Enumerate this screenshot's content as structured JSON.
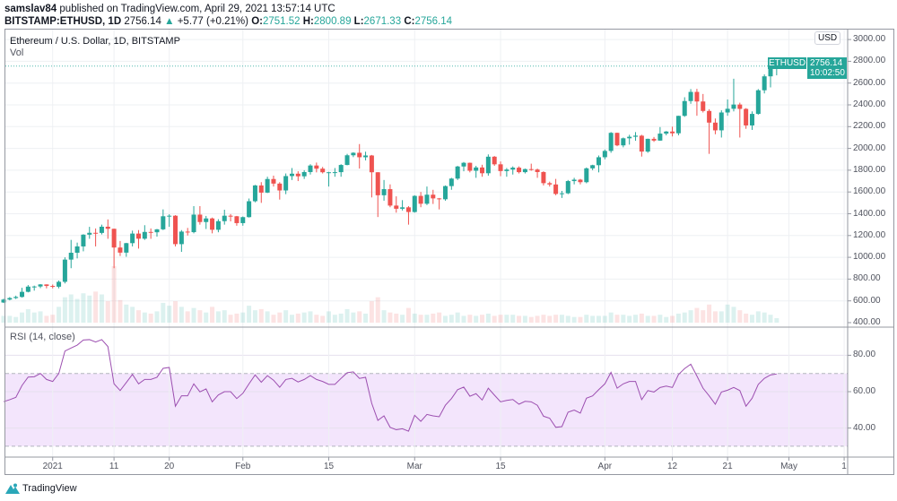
{
  "header": {
    "author": "samslav84",
    "published": "published on TradingView.com, April 29, 2021 13:57:14 UTC",
    "symbol": "BITSTAMP:ETHUSD, 1D",
    "last": "2756.14",
    "change_arrow": "▲",
    "change": "+5.77 (+0.21%)",
    "o_label": "O:",
    "o": "2751.52",
    "h_label": "H:",
    "h": "2800.89",
    "l_label": "L:",
    "l": "2671.33",
    "c_label": "C:",
    "c": "2756.14"
  },
  "pane": {
    "title": "Ethereum / U.S. Dollar, 1D, BITSTAMP",
    "volume_label": "Vol",
    "rsi_label": "RSI (14, close)",
    "currency_button": "USD",
    "symbol_tag": "ETHUSD",
    "last_price": "2756.14",
    "countdown": "10:02:50"
  },
  "footer": {
    "brand": "TradingView"
  },
  "colors": {
    "up": "#26a69a",
    "down": "#ef5350",
    "rsi_line": "#9c4fb0",
    "rsi_band": "#f3e5fc",
    "grid": "#eef0f3"
  },
  "chart_data": [
    {
      "type": "candlestick",
      "title": "Ethereum / U.S. Dollar, 1D, BITSTAMP",
      "ylim": [
        400,
        3000
      ],
      "y_ticks": [
        "400.00",
        "600.00",
        "800.00",
        "1000.00",
        "1200.00",
        "1400.00",
        "1600.00",
        "1800.00",
        "2000.00",
        "2200.00",
        "2400.00",
        "2600.00",
        "2800.00",
        "3000.00"
      ],
      "x_ticks": [
        {
          "label": "2021",
          "date": "2021-01-01"
        },
        {
          "label": "11",
          "date": "2021-01-11"
        },
        {
          "label": "20",
          "date": "2021-01-20"
        },
        {
          "label": "Feb",
          "date": "2021-02-01"
        },
        {
          "label": "15",
          "date": "2021-02-15"
        },
        {
          "label": "Mar",
          "date": "2021-03-01"
        },
        {
          "label": "15",
          "date": "2021-03-15"
        },
        {
          "label": "Apr",
          "date": "2021-04-01"
        },
        {
          "label": "12",
          "date": "2021-04-12"
        },
        {
          "label": "21",
          "date": "2021-04-21"
        },
        {
          "label": "May",
          "date": "2021-05-01"
        },
        {
          "label": "1",
          "date": "2021-05-10"
        }
      ],
      "grid": true,
      "columns": [
        "date",
        "open",
        "high",
        "low",
        "close",
        "volume_relative"
      ],
      "candles": [
        [
          "2020-12-24",
          585,
          620,
          580,
          612,
          12
        ],
        [
          "2020-12-25",
          612,
          635,
          605,
          626,
          12
        ],
        [
          "2020-12-26",
          626,
          648,
          617,
          636,
          10
        ],
        [
          "2020-12-27",
          636,
          720,
          630,
          683,
          18
        ],
        [
          "2020-12-28",
          683,
          745,
          678,
          731,
          24
        ],
        [
          "2020-12-29",
          731,
          740,
          694,
          732,
          18
        ],
        [
          "2020-12-30",
          732,
          754,
          717,
          751,
          20
        ],
        [
          "2020-12-31",
          751,
          752,
          715,
          737,
          12
        ],
        [
          "2021-01-01",
          737,
          750,
          715,
          730,
          14
        ],
        [
          "2021-01-02",
          730,
          787,
          715,
          775,
          28
        ],
        [
          "2021-01-03",
          775,
          1000,
          760,
          979,
          45
        ],
        [
          "2021-01-04",
          979,
          1160,
          900,
          1042,
          50
        ],
        [
          "2021-01-05",
          1042,
          1135,
          990,
          1100,
          42
        ],
        [
          "2021-01-06",
          1100,
          1212,
          1055,
          1208,
          52
        ],
        [
          "2021-01-07",
          1208,
          1280,
          1170,
          1225,
          48
        ],
        [
          "2021-01-08",
          1225,
          1265,
          1100,
          1224,
          55
        ],
        [
          "2021-01-09",
          1224,
          1300,
          1210,
          1281,
          50
        ],
        [
          "2021-01-10",
          1281,
          1348,
          1170,
          1262,
          38
        ],
        [
          "2021-01-11",
          1262,
          1262,
          900,
          1090,
          100
        ],
        [
          "2021-01-12",
          1090,
          1150,
          1012,
          1043,
          40
        ],
        [
          "2021-01-13",
          1043,
          1133,
          1005,
          1130,
          32
        ],
        [
          "2021-01-14",
          1130,
          1245,
          1100,
          1218,
          28
        ],
        [
          "2021-01-15",
          1218,
          1250,
          1080,
          1171,
          22
        ],
        [
          "2021-01-16",
          1171,
          1295,
          1160,
          1233,
          18
        ],
        [
          "2021-01-17",
          1233,
          1265,
          1170,
          1230,
          16
        ],
        [
          "2021-01-18",
          1230,
          1260,
          1190,
          1257,
          20
        ],
        [
          "2021-01-19",
          1257,
          1440,
          1250,
          1377,
          35
        ],
        [
          "2021-01-20",
          1377,
          1395,
          1280,
          1382,
          30
        ],
        [
          "2021-01-21",
          1382,
          1387,
          1100,
          1121,
          38
        ],
        [
          "2021-01-22",
          1121,
          1250,
          1050,
          1236,
          28
        ],
        [
          "2021-01-23",
          1236,
          1270,
          1200,
          1231,
          20
        ],
        [
          "2021-01-24",
          1231,
          1470,
          1220,
          1392,
          26
        ],
        [
          "2021-01-25",
          1392,
          1470,
          1300,
          1324,
          22
        ],
        [
          "2021-01-26",
          1324,
          1380,
          1260,
          1357,
          18
        ],
        [
          "2021-01-27",
          1357,
          1365,
          1220,
          1253,
          28
        ],
        [
          "2021-01-28",
          1253,
          1350,
          1230,
          1332,
          20
        ],
        [
          "2021-01-29",
          1332,
          1437,
          1300,
          1382,
          22
        ],
        [
          "2021-01-30",
          1382,
          1397,
          1330,
          1377,
          14
        ],
        [
          "2021-01-31",
          1377,
          1380,
          1290,
          1314,
          16
        ],
        [
          "2021-02-01",
          1314,
          1375,
          1290,
          1369,
          18
        ],
        [
          "2021-02-02",
          1369,
          1540,
          1365,
          1515,
          30
        ],
        [
          "2021-02-03",
          1515,
          1665,
          1505,
          1660,
          22
        ],
        [
          "2021-02-04",
          1660,
          1690,
          1500,
          1594,
          24
        ],
        [
          "2021-02-05",
          1594,
          1740,
          1590,
          1719,
          20
        ],
        [
          "2021-02-06",
          1719,
          1750,
          1650,
          1677,
          14
        ],
        [
          "2021-02-07",
          1677,
          1690,
          1530,
          1614,
          18
        ],
        [
          "2021-02-08",
          1614,
          1770,
          1580,
          1746,
          22
        ],
        [
          "2021-02-09",
          1746,
          1820,
          1710,
          1768,
          14
        ],
        [
          "2021-02-10",
          1768,
          1790,
          1700,
          1744,
          16
        ],
        [
          "2021-02-11",
          1744,
          1800,
          1720,
          1783,
          18
        ],
        [
          "2021-02-12",
          1783,
          1855,
          1760,
          1843,
          20
        ],
        [
          "2021-02-13",
          1843,
          1870,
          1780,
          1814,
          14
        ],
        [
          "2021-02-14",
          1814,
          1830,
          1770,
          1781,
          12
        ],
        [
          "2021-02-15",
          1781,
          1785,
          1650,
          1781,
          20
        ],
        [
          "2021-02-16",
          1781,
          1820,
          1740,
          1782,
          14
        ],
        [
          "2021-02-17",
          1782,
          1855,
          1740,
          1848,
          16
        ],
        [
          "2021-02-18",
          1848,
          1950,
          1845,
          1937,
          24
        ],
        [
          "2021-02-19",
          1937,
          1965,
          1920,
          1960,
          18
        ],
        [
          "2021-02-20",
          1960,
          2040,
          1815,
          1919,
          20
        ],
        [
          "2021-02-21",
          1919,
          1970,
          1890,
          1935,
          16
        ],
        [
          "2021-02-22",
          1935,
          1940,
          1550,
          1781,
          38
        ],
        [
          "2021-02-23",
          1781,
          1782,
          1370,
          1570,
          45
        ],
        [
          "2021-02-24",
          1570,
          1710,
          1520,
          1626,
          22
        ],
        [
          "2021-02-25",
          1626,
          1670,
          1460,
          1475,
          18
        ],
        [
          "2021-02-26",
          1475,
          1560,
          1410,
          1446,
          16
        ],
        [
          "2021-02-27",
          1446,
          1525,
          1430,
          1459,
          14
        ],
        [
          "2021-02-28",
          1459,
          1470,
          1300,
          1416,
          26
        ],
        [
          "2021-03-01",
          1416,
          1570,
          1410,
          1564,
          16
        ],
        [
          "2021-03-02",
          1564,
          1600,
          1460,
          1492,
          14
        ],
        [
          "2021-03-03",
          1492,
          1650,
          1480,
          1575,
          14
        ],
        [
          "2021-03-04",
          1575,
          1620,
          1490,
          1541,
          16
        ],
        [
          "2021-03-05",
          1541,
          1545,
          1440,
          1533,
          18
        ],
        [
          "2021-03-06",
          1533,
          1660,
          1520,
          1654,
          12
        ],
        [
          "2021-03-07",
          1654,
          1730,
          1620,
          1723,
          14
        ],
        [
          "2021-03-08",
          1723,
          1840,
          1710,
          1834,
          18
        ],
        [
          "2021-03-09",
          1834,
          1875,
          1790,
          1868,
          12
        ],
        [
          "2021-03-10",
          1868,
          1870,
          1780,
          1795,
          14
        ],
        [
          "2021-03-11",
          1795,
          1840,
          1730,
          1825,
          12
        ],
        [
          "2021-03-12",
          1825,
          1850,
          1740,
          1772,
          14
        ],
        [
          "2021-03-13",
          1772,
          1945,
          1750,
          1924,
          16
        ],
        [
          "2021-03-14",
          1924,
          1930,
          1840,
          1854,
          12
        ],
        [
          "2021-03-15",
          1854,
          1880,
          1745,
          1792,
          14
        ],
        [
          "2021-03-16",
          1792,
          1820,
          1740,
          1806,
          14
        ],
        [
          "2021-03-17",
          1806,
          1835,
          1760,
          1823,
          14
        ],
        [
          "2021-03-18",
          1823,
          1835,
          1770,
          1782,
          12
        ],
        [
          "2021-03-19",
          1782,
          1815,
          1770,
          1810,
          12
        ],
        [
          "2021-03-20",
          1810,
          1860,
          1795,
          1806,
          10
        ],
        [
          "2021-03-21",
          1806,
          1815,
          1730,
          1783,
          12
        ],
        [
          "2021-03-22",
          1783,
          1790,
          1660,
          1681,
          14
        ],
        [
          "2021-03-23",
          1681,
          1695,
          1650,
          1669,
          12
        ],
        [
          "2021-03-24",
          1669,
          1720,
          1570,
          1582,
          14
        ],
        [
          "2021-03-25",
          1582,
          1610,
          1545,
          1588,
          14
        ],
        [
          "2021-03-26",
          1588,
          1710,
          1580,
          1700,
          12
        ],
        [
          "2021-03-27",
          1700,
          1730,
          1670,
          1713,
          10
        ],
        [
          "2021-03-28",
          1713,
          1720,
          1670,
          1690,
          10
        ],
        [
          "2021-03-29",
          1690,
          1825,
          1680,
          1817,
          14
        ],
        [
          "2021-03-30",
          1817,
          1850,
          1800,
          1846,
          12
        ],
        [
          "2021-03-31",
          1846,
          1935,
          1780,
          1919,
          12
        ],
        [
          "2021-04-01",
          1919,
          1990,
          1900,
          1977,
          12
        ],
        [
          "2021-04-02",
          1977,
          2150,
          1960,
          2143,
          18
        ],
        [
          "2021-04-03",
          2143,
          2145,
          2020,
          2028,
          14
        ],
        [
          "2021-04-04",
          2028,
          2100,
          2010,
          2093,
          14
        ],
        [
          "2021-04-05",
          2093,
          2125,
          2035,
          2107,
          12
        ],
        [
          "2021-04-06",
          2107,
          2150,
          2070,
          2117,
          14
        ],
        [
          "2021-04-07",
          2117,
          2125,
          1925,
          1971,
          16
        ],
        [
          "2021-04-08",
          1971,
          2090,
          1960,
          2088,
          12
        ],
        [
          "2021-04-09",
          2088,
          2105,
          2060,
          2072,
          12
        ],
        [
          "2021-04-10",
          2072,
          2196,
          2070,
          2136,
          14
        ],
        [
          "2021-04-11",
          2136,
          2160,
          2120,
          2155,
          10
        ],
        [
          "2021-04-12",
          2155,
          2200,
          2110,
          2139,
          12
        ],
        [
          "2021-04-13",
          2139,
          2300,
          2120,
          2299,
          16
        ],
        [
          "2021-04-14",
          2299,
          2470,
          2290,
          2435,
          18
        ],
        [
          "2021-04-15",
          2435,
          2545,
          2410,
          2519,
          22
        ],
        [
          "2021-04-16",
          2519,
          2547,
          2300,
          2431,
          26
        ],
        [
          "2021-04-17",
          2431,
          2500,
          2330,
          2344,
          22
        ],
        [
          "2021-04-18",
          2344,
          2360,
          1950,
          2237,
          32
        ],
        [
          "2021-04-19",
          2237,
          2275,
          2130,
          2166,
          20
        ],
        [
          "2021-04-20",
          2166,
          2350,
          2100,
          2330,
          20
        ],
        [
          "2021-04-21",
          2330,
          2450,
          2300,
          2364,
          32
        ],
        [
          "2021-04-22",
          2364,
          2640,
          2340,
          2403,
          28
        ],
        [
          "2021-04-23",
          2403,
          2420,
          2100,
          2363,
          22
        ],
        [
          "2021-04-24",
          2363,
          2370,
          2180,
          2211,
          16
        ],
        [
          "2021-04-25",
          2211,
          2340,
          2170,
          2317,
          14
        ],
        [
          "2021-04-26",
          2317,
          2545,
          2310,
          2534,
          20
        ],
        [
          "2021-04-27",
          2534,
          2680,
          2505,
          2662,
          18
        ],
        [
          "2021-04-28",
          2662,
          2760,
          2560,
          2750.37,
          14
        ],
        [
          "2021-04-29",
          2751.52,
          2800.89,
          2671.33,
          2756.14,
          8
        ]
      ]
    },
    {
      "type": "line",
      "title": "RSI (14, close)",
      "ylim": [
        25,
        95
      ],
      "y_ticks": [
        "40.00",
        "60.00",
        "80.00"
      ],
      "bands": {
        "upper": 70,
        "lower": 30
      },
      "values": [
        54.5,
        55.6,
        56.9,
        63.4,
        68,
        68.2,
        70,
        66.7,
        65.6,
        70,
        82.3,
        84,
        85.6,
        88.4,
        88.6,
        87.3,
        88.6,
        84.8,
        64.3,
        60.6,
        65,
        69.5,
        64.3,
        66.7,
        66.7,
        67.9,
        72.8,
        73.3,
        52,
        57.7,
        57.7,
        64.3,
        59.9,
        61.5,
        54.4,
        58.2,
        60,
        60,
        56.2,
        59.1,
        64.3,
        69.2,
        65.2,
        68.8,
        66.3,
        62.4,
        66.7,
        67.3,
        65.3,
        66.7,
        68.8,
        66.7,
        65.6,
        64,
        64,
        67.3,
        70.4,
        70.9,
        67.3,
        67.9,
        53.6,
        44.2,
        46.7,
        40.4,
        39.1,
        39.6,
        38.3,
        47,
        43.7,
        47.5,
        46.7,
        46.2,
        52.5,
        56.2,
        61.1,
        62.5,
        57.5,
        58.9,
        55.4,
        61.9,
        58.1,
        54.4,
        55.2,
        55.7,
        53.1,
        54.7,
        54.4,
        52.5,
        46.5,
        45.4,
        40.4,
        40.8,
        48.7,
        49.9,
        48.2,
        56.4,
        57.7,
        61.1,
        64.3,
        70.6,
        61.9,
        64.3,
        65.6,
        65.6,
        55.6,
        60.6,
        59.8,
        62.3,
        63.1,
        62.3,
        69.4,
        72.7,
        75.1,
        68.6,
        61.9,
        57.7,
        53.1,
        59.8,
        60.8,
        62.3,
        60.6,
        52,
        56.4,
        64,
        67.3,
        69.2,
        69.7
      ]
    }
  ]
}
